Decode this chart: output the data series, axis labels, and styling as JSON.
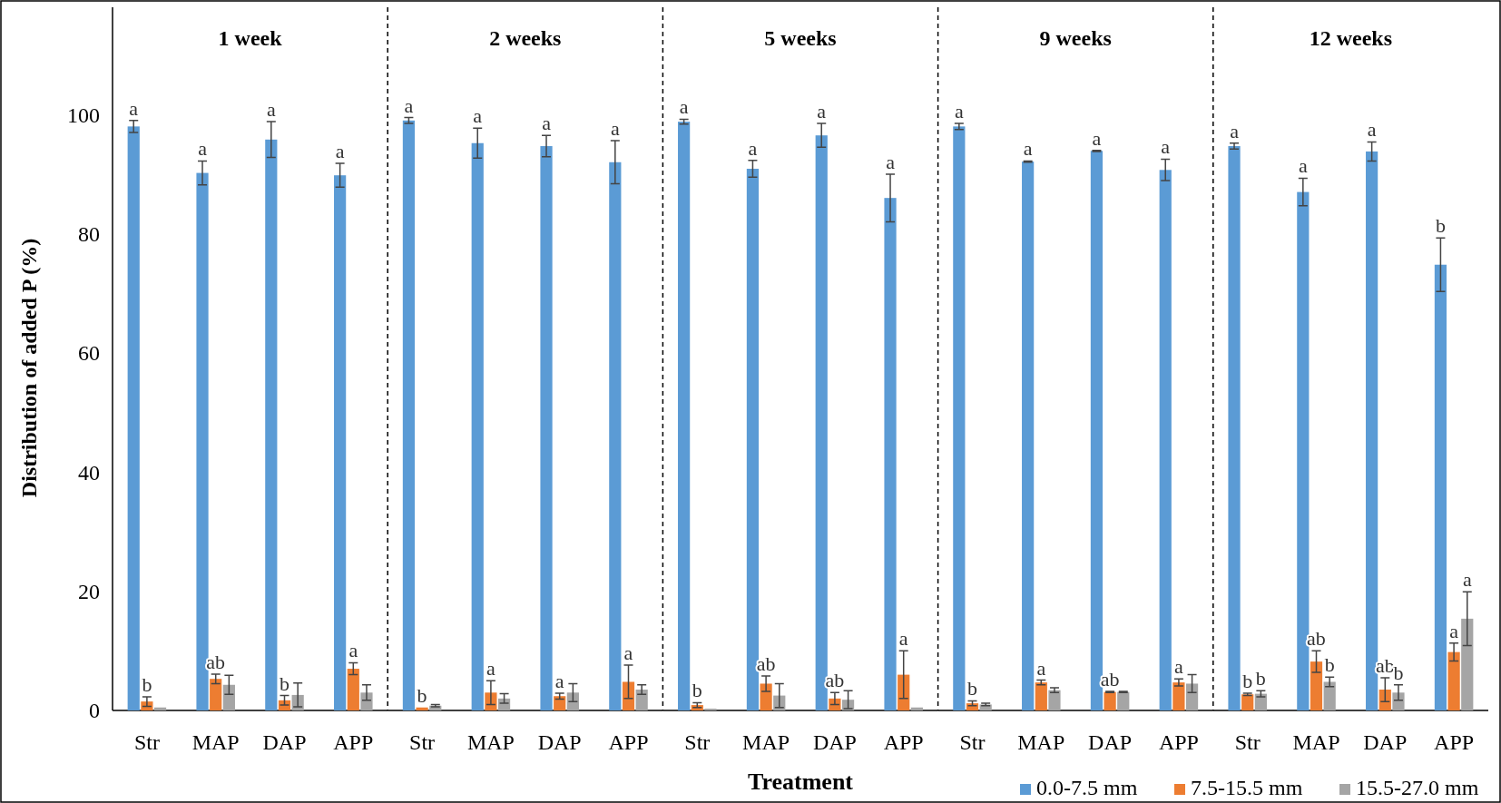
{
  "chart_data": [
    {
      "type": "bar",
      "title": "1 week",
      "ylabel": "Distribution of added P (%)",
      "categories": [
        "Str",
        "MAP",
        "DAP",
        "APP"
      ],
      "ylim": [
        0,
        118
      ],
      "yticks": [
        0,
        20,
        40,
        60,
        80,
        100
      ],
      "series": [
        {
          "color": "#5b9bd5",
          "values": [
            98,
            90.2,
            95.8,
            89.8
          ],
          "errors": [
            1,
            2,
            3,
            2
          ],
          "value_labels": [
            "a",
            "a",
            "a",
            "a"
          ]
        },
        {
          "color": "#ed7d31",
          "values": [
            1.5,
            5.3,
            1.7,
            7
          ],
          "errors": [
            0.8,
            0.8,
            0.8,
            1
          ],
          "value_labels": [
            "b",
            "ab",
            "b",
            "a"
          ]
        },
        {
          "color": "#a5a5a5",
          "values": [
            0.5,
            4.3,
            2.6,
            3
          ],
          "errors": [
            null,
            1.6,
            2,
            1.3
          ]
        }
      ]
    },
    {
      "type": "bar",
      "title": "2 weeks",
      "categories": [
        "Str",
        "MAP",
        "DAP",
        "APP"
      ],
      "ylim": [
        0,
        118
      ],
      "tick_labels": "x",
      "series": [
        {
          "color": "#5b9bd5",
          "values": [
            99,
            95.2,
            94.7,
            92
          ],
          "errors": [
            0.5,
            2.5,
            1.8,
            3.6
          ],
          "value_labels": [
            "a",
            "a",
            "a",
            "a"
          ]
        },
        {
          "color": "#ed7d31",
          "values": [
            0.5,
            3,
            2.4,
            4.8
          ],
          "errors": [
            null,
            2,
            0.5,
            2.8
          ],
          "value_labels": [
            "b",
            "a",
            "a",
            "a"
          ]
        },
        {
          "color": "#a5a5a5",
          "values": [
            0.8,
            2,
            3,
            3.5
          ],
          "errors": [
            0.2,
            0.8,
            1.5,
            0.8
          ]
        }
      ]
    },
    {
      "type": "bar",
      "title": "5 weeks",
      "xlabel": "Treatment",
      "categories": [
        "Str",
        "MAP",
        "DAP",
        "APP"
      ],
      "ylim": [
        0,
        118
      ],
      "tick_labels": "x",
      "series": [
        {
          "color": "#5b9bd5",
          "values": [
            98.8,
            90.9,
            96.5,
            86
          ],
          "errors": [
            0.4,
            1.4,
            2,
            4
          ],
          "value_labels": [
            "a",
            "a",
            "a",
            "a"
          ]
        },
        {
          "color": "#ed7d31",
          "values": [
            0.9,
            4.5,
            2,
            6
          ],
          "errors": [
            0.4,
            1.3,
            1,
            4
          ],
          "value_labels": [
            "b",
            "ab",
            "ab",
            "a"
          ]
        },
        {
          "color": "#a5a5a5",
          "values": [
            0.3,
            2.5,
            1.8,
            0.5
          ],
          "errors": [
            null,
            2,
            1.5,
            null
          ]
        }
      ]
    },
    {
      "type": "bar",
      "title": "9 weeks",
      "categories": [
        "Str",
        "MAP",
        "DAP",
        "APP"
      ],
      "ylim": [
        0,
        118
      ],
      "tick_labels": "x",
      "series": [
        {
          "color": "#5b9bd5",
          "values": [
            98,
            92.1,
            93.9,
            90.7
          ],
          "errors": [
            0.5,
            0.1,
            0.1,
            1.8
          ],
          "value_labels": [
            "a",
            "a",
            "a",
            "a"
          ]
        },
        {
          "color": "#ed7d31",
          "values": [
            1.2,
            4.7,
            3.1,
            4.7
          ],
          "errors": [
            0.4,
            0.4,
            0.1,
            0.6
          ],
          "value_labels": [
            "b",
            "a",
            "ab",
            "a"
          ]
        },
        {
          "color": "#a5a5a5",
          "values": [
            1,
            3.4,
            3.1,
            4.5
          ],
          "errors": [
            0.2,
            0.4,
            0.1,
            1.5
          ]
        }
      ]
    },
    {
      "type": "bar",
      "title": "12 weeks",
      "categories": [
        "Str",
        "MAP",
        "DAP",
        "APP"
      ],
      "ylim": [
        0,
        118
      ],
      "tick_labels": "x",
      "legend": "bottom",
      "series": [
        {
          "name": "0.0-7.5 mm",
          "color": "#5b9bd5",
          "values": [
            94.7,
            87,
            93.8,
            74.8
          ],
          "errors": [
            0.5,
            2.3,
            1.6,
            4.5
          ],
          "value_labels": [
            "a",
            "a",
            "a",
            "b"
          ]
        },
        {
          "name": "7.5-15.5 mm",
          "color": "#ed7d31",
          "values": [
            2.7,
            8.2,
            3.5,
            9.8
          ],
          "errors": [
            0.2,
            1.8,
            2,
            1.5
          ],
          "value_labels": [
            "b",
            "ab",
            "ab",
            "a"
          ]
        },
        {
          "name": "15.5-27.0 mm",
          "color": "#a5a5a5",
          "values": [
            2.8,
            4.8,
            3,
            15.4
          ],
          "errors": [
            0.5,
            0.8,
            1.3,
            4.5
          ],
          "value_labels": [
            "b",
            "b",
            "b",
            "a"
          ]
        }
      ]
    }
  ]
}
